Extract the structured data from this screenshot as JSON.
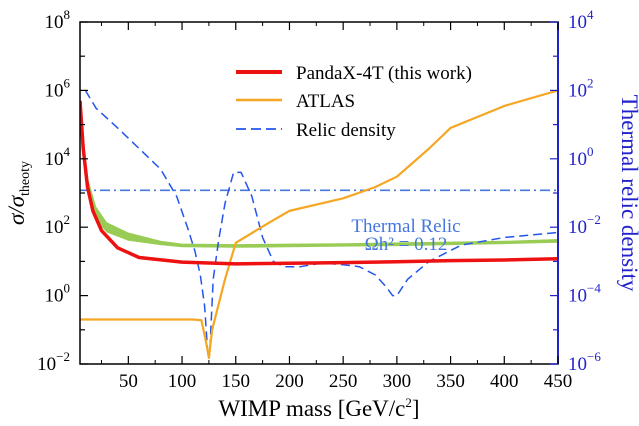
{
  "chart_data": {
    "type": "line",
    "xlabel": "WIMP mass [GeV/c²]",
    "xlabel_base": "WIMP mass [GeV/c",
    "xlabel_sup": "2",
    "xlabel_tail": "]",
    "ylabel": "σ/σ_theoty",
    "ylabel_sub": "theoty",
    "y2label": "Thermal relic density",
    "xlim": [
      5,
      450
    ],
    "ylim_log10": [
      -2,
      8
    ],
    "y2lim_log10": [
      -6,
      4
    ],
    "y_scale": "log",
    "y2_scale": "log",
    "grid": false,
    "legend_position": "top-center",
    "x_ticks": [
      50,
      100,
      150,
      200,
      250,
      300,
      350,
      400,
      450
    ],
    "y_tick_exponents": [
      -2,
      0,
      2,
      4,
      6,
      8
    ],
    "y2_tick_exponents": [
      -6,
      -4,
      -2,
      0,
      2,
      4
    ],
    "series": [
      {
        "name": "PandaX-4T (this work)",
        "axis": "left",
        "style": "solid-thick",
        "color": "#ee1111",
        "x": [
          5,
          8,
          12,
          17,
          25,
          40,
          60,
          100,
          150,
          200,
          250,
          300,
          350,
          400,
          450
        ],
        "y": [
          500000,
          20000,
          1500,
          300,
          80,
          25,
          13,
          9.5,
          8.5,
          8.8,
          9.2,
          9.8,
          10.5,
          11,
          12
        ]
      },
      {
        "name": "ATLAS",
        "axis": "left",
        "style": "solid",
        "color": "#f5a623",
        "x": [
          5,
          30,
          60,
          90,
          110,
          118,
          122,
          125,
          128,
          140,
          150,
          180,
          200,
          250,
          280,
          300,
          330,
          350,
          400,
          450
        ],
        "y": [
          0.2,
          0.2,
          0.2,
          0.2,
          0.2,
          0.19,
          0.05,
          0.015,
          0.1,
          3,
          35,
          130,
          300,
          700,
          1500,
          3000,
          20000,
          80000,
          350000,
          1000000
        ]
      },
      {
        "name": "Relic density",
        "axis": "right",
        "style": "dashed",
        "color": "#2255ee",
        "x": [
          10,
          20,
          40,
          60,
          80,
          95,
          105,
          112,
          117,
          121,
          124,
          126,
          129,
          134,
          140,
          148,
          155,
          165,
          175,
          185,
          195,
          210,
          230,
          250,
          265,
          280,
          290,
          296,
          300,
          310,
          330,
          360,
          400,
          450
        ],
        "y": [
          100,
          30,
          8,
          2,
          0.5,
          0.08,
          0.01,
          0.002,
          0.0004,
          5e-05,
          2e-06,
          3e-06,
          0.0003,
          0.004,
          0.05,
          0.4,
          0.4,
          0.08,
          0.005,
          0.001,
          0.0007,
          0.0007,
          0.0009,
          0.0008,
          0.0007,
          0.0004,
          0.00018,
          0.0001,
          0.0001,
          0.0003,
          0.001,
          0.003,
          0.005,
          0.007
        ]
      }
    ],
    "band": {
      "color": "#99cc55",
      "x": [
        12,
        20,
        30,
        50,
        80,
        100,
        150,
        200,
        250,
        300,
        350,
        400,
        450
      ],
      "y_low": [
        1500,
        150,
        70,
        40,
        30,
        26,
        25,
        26,
        27,
        28,
        30,
        32,
        35
      ],
      "y_high": [
        3000,
        400,
        140,
        70,
        40,
        33,
        32,
        33,
        34,
        36,
        38,
        40,
        45
      ]
    },
    "thermal_relic": {
      "value": 0.12,
      "axis": "right",
      "style": "dash-dot",
      "color": "#4477dd",
      "label_line1": "Thermal Relic",
      "label_line2": "Ωh² = 0.12"
    }
  },
  "legend": {
    "entries": [
      {
        "label": "PandaX-4T (this work)",
        "color": "#ee1111",
        "style": "solid-thick"
      },
      {
        "label": "ATLAS",
        "color": "#f5a623",
        "style": "solid"
      },
      {
        "label": "Relic density",
        "color": "#2255ee",
        "style": "dashed"
      }
    ]
  },
  "colors": {
    "left_axis": "#000000",
    "right_axis": "#2222cc"
  }
}
